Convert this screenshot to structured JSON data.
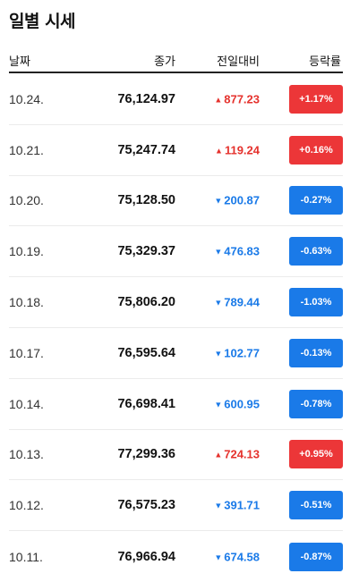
{
  "title": "일별 시세",
  "columns": {
    "date": "날짜",
    "close": "종가",
    "change": "전일대비",
    "rate": "등락률"
  },
  "colors": {
    "up": "#ec3638",
    "down": "#1a7ae8"
  },
  "rows": [
    {
      "date": "10.24.",
      "close": "76,124.97",
      "change": "877.23",
      "rate": "+1.17%",
      "dir": "up"
    },
    {
      "date": "10.21.",
      "close": "75,247.74",
      "change": "119.24",
      "rate": "+0.16%",
      "dir": "up"
    },
    {
      "date": "10.20.",
      "close": "75,128.50",
      "change": "200.87",
      "rate": "-0.27%",
      "dir": "down"
    },
    {
      "date": "10.19.",
      "close": "75,329.37",
      "change": "476.83",
      "rate": "-0.63%",
      "dir": "down"
    },
    {
      "date": "10.18.",
      "close": "75,806.20",
      "change": "789.44",
      "rate": "-1.03%",
      "dir": "down"
    },
    {
      "date": "10.17.",
      "close": "76,595.64",
      "change": "102.77",
      "rate": "-0.13%",
      "dir": "down"
    },
    {
      "date": "10.14.",
      "close": "76,698.41",
      "change": "600.95",
      "rate": "-0.78%",
      "dir": "down"
    },
    {
      "date": "10.13.",
      "close": "77,299.36",
      "change": "724.13",
      "rate": "+0.95%",
      "dir": "up"
    },
    {
      "date": "10.12.",
      "close": "76,575.23",
      "change": "391.71",
      "rate": "-0.51%",
      "dir": "down"
    },
    {
      "date": "10.11.",
      "close": "76,966.94",
      "change": "674.58",
      "rate": "-0.87%",
      "dir": "down"
    }
  ]
}
